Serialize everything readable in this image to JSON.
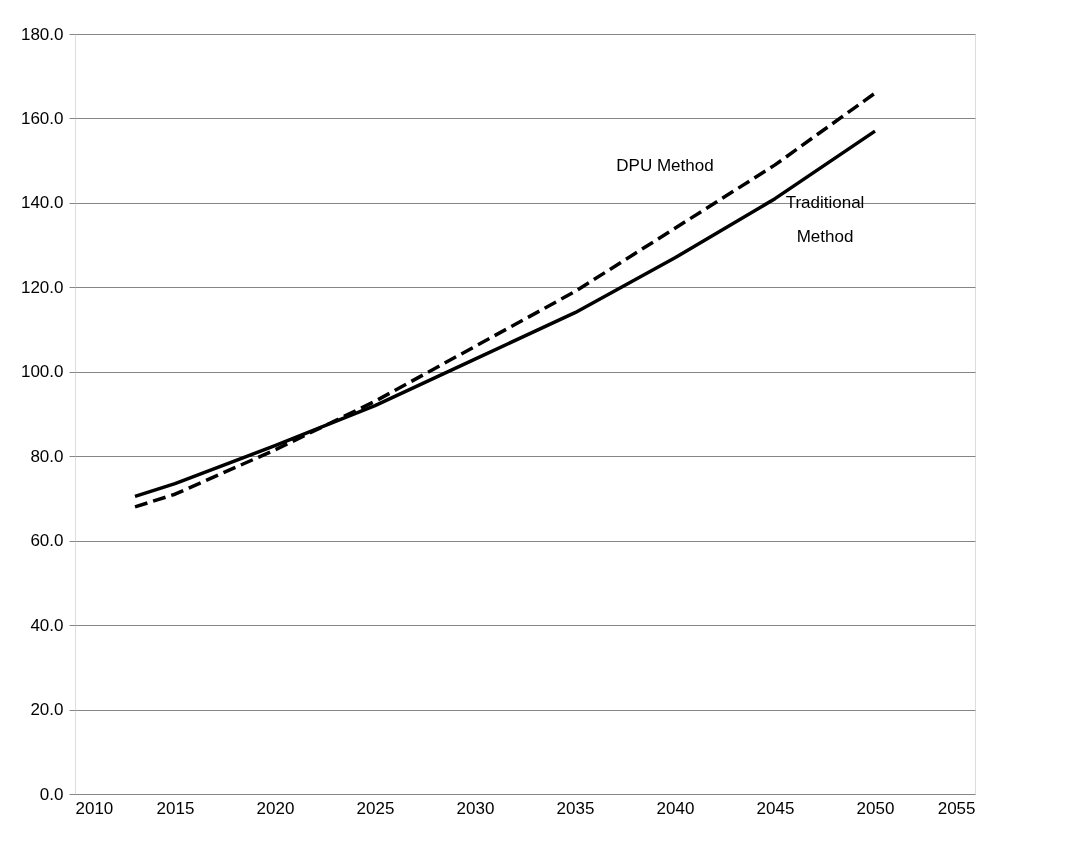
{
  "chart_data": {
    "type": "line",
    "x": [
      2013,
      2015,
      2020,
      2025,
      2030,
      2035,
      2040,
      2045,
      2050
    ],
    "series": [
      {
        "name": "DPU Method",
        "color": "#000000",
        "line_style": "dashed",
        "values": [
          68,
          71,
          81.5,
          93,
          106,
          119,
          134,
          149,
          166
        ]
      },
      {
        "name": "Traditional Method",
        "color": "#000000",
        "line_style": "solid",
        "values": [
          70.5,
          73.5,
          82.5,
          92,
          103,
          114,
          127,
          141,
          157
        ]
      }
    ],
    "xlim": [
      2010,
      2055
    ],
    "xticks": [
      2010,
      2015,
      2020,
      2025,
      2030,
      2035,
      2040,
      2045,
      2050,
      2055
    ],
    "ylim": [
      0,
      180
    ],
    "yticks": [
      {
        "value": 0,
        "label": "0.0"
      },
      {
        "value": 20,
        "label": "20.0"
      },
      {
        "value": 40,
        "label": "40.0"
      },
      {
        "value": 60,
        "label": "60.0"
      },
      {
        "value": 80,
        "label": "80.0"
      },
      {
        "value": 100,
        "label": "100.0"
      },
      {
        "value": 120,
        "label": "120.0"
      },
      {
        "value": 140,
        "label": "140.0"
      },
      {
        "value": 160,
        "label": "160.0"
      },
      {
        "value": 180,
        "label": "180.0"
      }
    ],
    "grid": "y",
    "marker": "none"
  }
}
